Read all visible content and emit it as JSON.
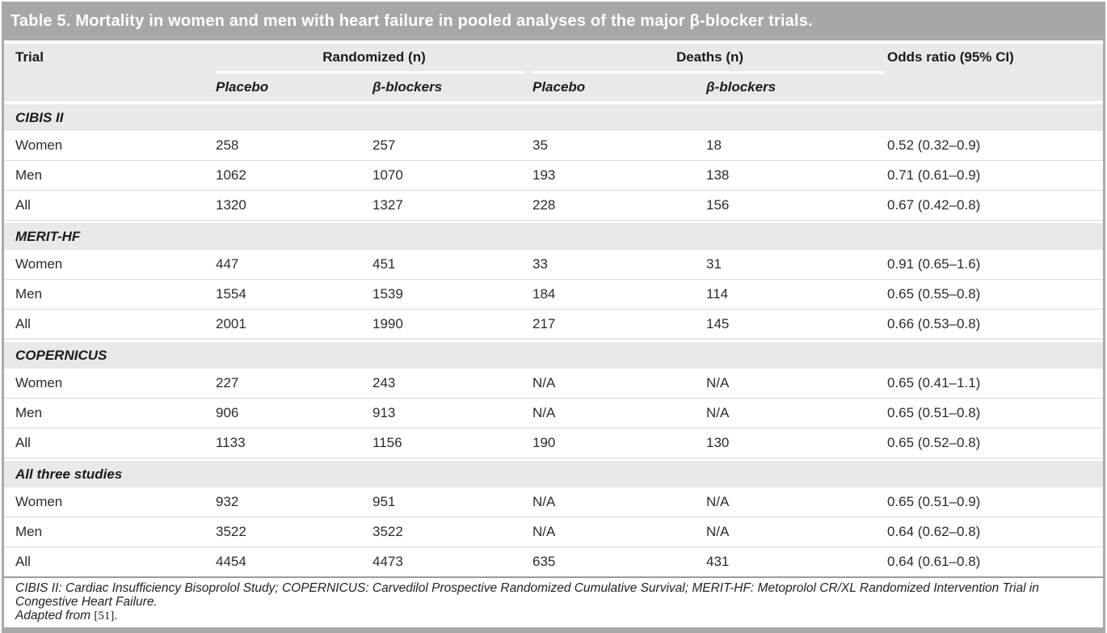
{
  "title": "Table 5. Mortality in women and men with heart failure in pooled analyses of the major β-blocker trials.",
  "columns": {
    "trial": "Trial",
    "randomized_group": "Randomized (n)",
    "deaths_group": "Deaths (n)",
    "odds_ratio": "Odds ratio (95% CI)",
    "sub_placebo_randomized": "Placebo",
    "sub_bblockers_randomized": "β-blockers",
    "sub_placebo_deaths": "Placebo",
    "sub_bblockers_deaths": "β-blockers"
  },
  "sections": [
    {
      "name": "CIBIS II",
      "rows": [
        {
          "trial": "Women",
          "randomized_placebo": "258",
          "randomized_bblockers": "257",
          "deaths_placebo": "35",
          "deaths_bblockers": "18",
          "odds_ratio": "0.52 (0.32–0.9)"
        },
        {
          "trial": "Men",
          "randomized_placebo": "1062",
          "randomized_bblockers": "1070",
          "deaths_placebo": "193",
          "deaths_bblockers": "138",
          "odds_ratio": "0.71 (0.61–0.9)"
        },
        {
          "trial": "All",
          "randomized_placebo": "1320",
          "randomized_bblockers": "1327",
          "deaths_placebo": "228",
          "deaths_bblockers": "156",
          "odds_ratio": "0.67 (0.42–0.8)"
        }
      ]
    },
    {
      "name": "MERIT-HF",
      "rows": [
        {
          "trial": "Women",
          "randomized_placebo": "447",
          "randomized_bblockers": "451",
          "deaths_placebo": "33",
          "deaths_bblockers": "31",
          "odds_ratio": "0.91 (0.65–1.6)"
        },
        {
          "trial": "Men",
          "randomized_placebo": "1554",
          "randomized_bblockers": "1539",
          "deaths_placebo": "184",
          "deaths_bblockers": "114",
          "odds_ratio": "0.65 (0.55–0.8)"
        },
        {
          "trial": "All",
          "randomized_placebo": "2001",
          "randomized_bblockers": "1990",
          "deaths_placebo": "217",
          "deaths_bblockers": "145",
          "odds_ratio": "0.66 (0.53–0.8)"
        }
      ]
    },
    {
      "name": "COPERNICUS",
      "rows": [
        {
          "trial": "Women",
          "randomized_placebo": "227",
          "randomized_bblockers": "243",
          "deaths_placebo": "N/A",
          "deaths_bblockers": "N/A",
          "odds_ratio": "0.65 (0.41–1.1)"
        },
        {
          "trial": "Men",
          "randomized_placebo": "906",
          "randomized_bblockers": "913",
          "deaths_placebo": "N/A",
          "deaths_bblockers": "N/A",
          "odds_ratio": "0.65 (0.51–0.8)"
        },
        {
          "trial": "All",
          "randomized_placebo": "1133",
          "randomized_bblockers": "1156",
          "deaths_placebo": "190",
          "deaths_bblockers": "130",
          "odds_ratio": "0.65 (0.52–0.8)"
        }
      ]
    },
    {
      "name": "All three studies",
      "rows": [
        {
          "trial": "Women",
          "randomized_placebo": "932",
          "randomized_bblockers": "951",
          "deaths_placebo": "N/A",
          "deaths_bblockers": "N/A",
          "odds_ratio": "0.65 (0.51–0.9)"
        },
        {
          "trial": "Men",
          "randomized_placebo": "3522",
          "randomized_bblockers": "3522",
          "deaths_placebo": "N/A",
          "deaths_bblockers": "N/A",
          "odds_ratio": "0.64 (0.62–0.8)"
        },
        {
          "trial": "All",
          "randomized_placebo": "4454",
          "randomized_bblockers": "4473",
          "deaths_placebo": "635",
          "deaths_bblockers": "431",
          "odds_ratio": "0.64 (0.61–0.8)"
        }
      ]
    }
  ],
  "footnotes": {
    "abbreviations": "CIBIS II: Cardiac Insufficiency Bisoprolol Study; COPERNICUS: Carvedilol Prospective Randomized Cumulative Survival; MERIT-HF: Metoprolol CR/XL Randomized Intervention Trial in Congestive Heart Failure.",
    "adapted_prefix": "Adapted from",
    "adapted_ref": "[51]."
  },
  "colors": {
    "title_bar": "#a7a7a7",
    "header_band": "#e9e9e9",
    "section_band": "#e9e9e9",
    "side_border": "#a9a9a9",
    "row_divider": "#d9d9d9",
    "heavy_divider": "#9b9b9b",
    "title_text": "#ffffff",
    "body_text": "#2b2b2b"
  }
}
